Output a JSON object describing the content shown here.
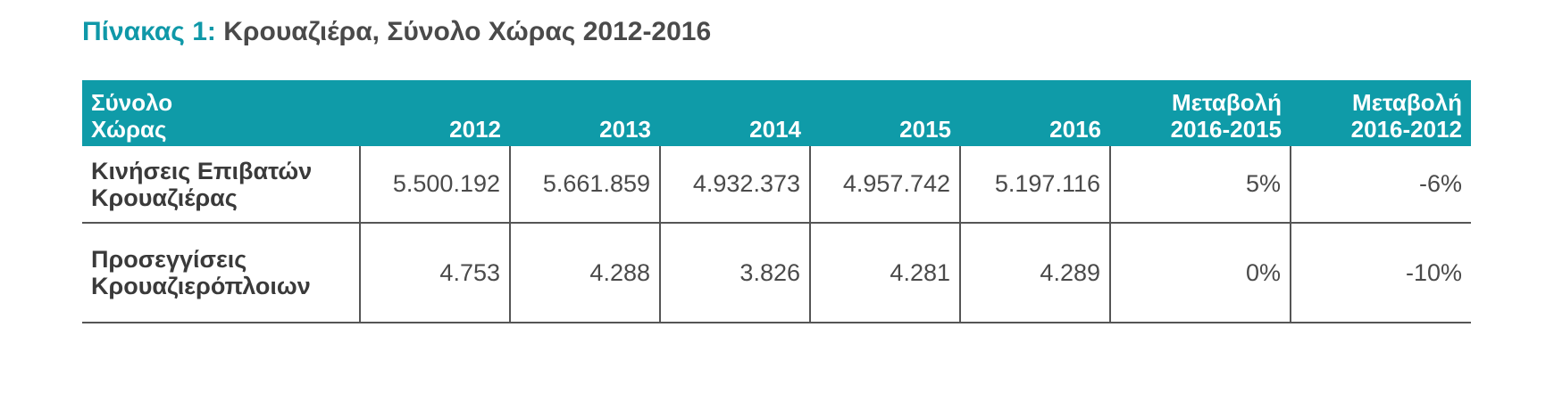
{
  "title": {
    "prefix": "Πίνακας 1:",
    "main": "Κρουαζιέρα, Σύνολο Χώρας 2012-2016"
  },
  "table": {
    "header": {
      "first": "Σύνολο\nΧώρας",
      "y2012": "2012",
      "y2013": "2013",
      "y2014": "2014",
      "y2015": "2015",
      "y2016": "2016",
      "change1": "Μεταβολή\n2016-2015",
      "change2": "Μεταβολή\n2016-2012"
    },
    "rows": [
      {
        "label": "Κινήσεις Επιβατών\nΚρουαζιέρας",
        "y2012": "5.500.192",
        "y2013": "5.661.859",
        "y2014": "4.932.373",
        "y2015": "4.957.742",
        "y2016": "5.197.116",
        "change1": "5%",
        "change2": "-6%"
      },
      {
        "label": "Προσεγγίσεις\nΚρουαζιερόπλοιων",
        "y2012": "4.753",
        "y2013": "4.288",
        "y2014": "3.826",
        "y2015": "4.281",
        "y2016": "4.289",
        "change1": "0%",
        "change2": "-10%"
      }
    ]
  },
  "colors": {
    "accent": "#0f9ba8",
    "title_prefix": "#0f98a8",
    "text": "#4a4a4a",
    "rule": "#555555"
  }
}
